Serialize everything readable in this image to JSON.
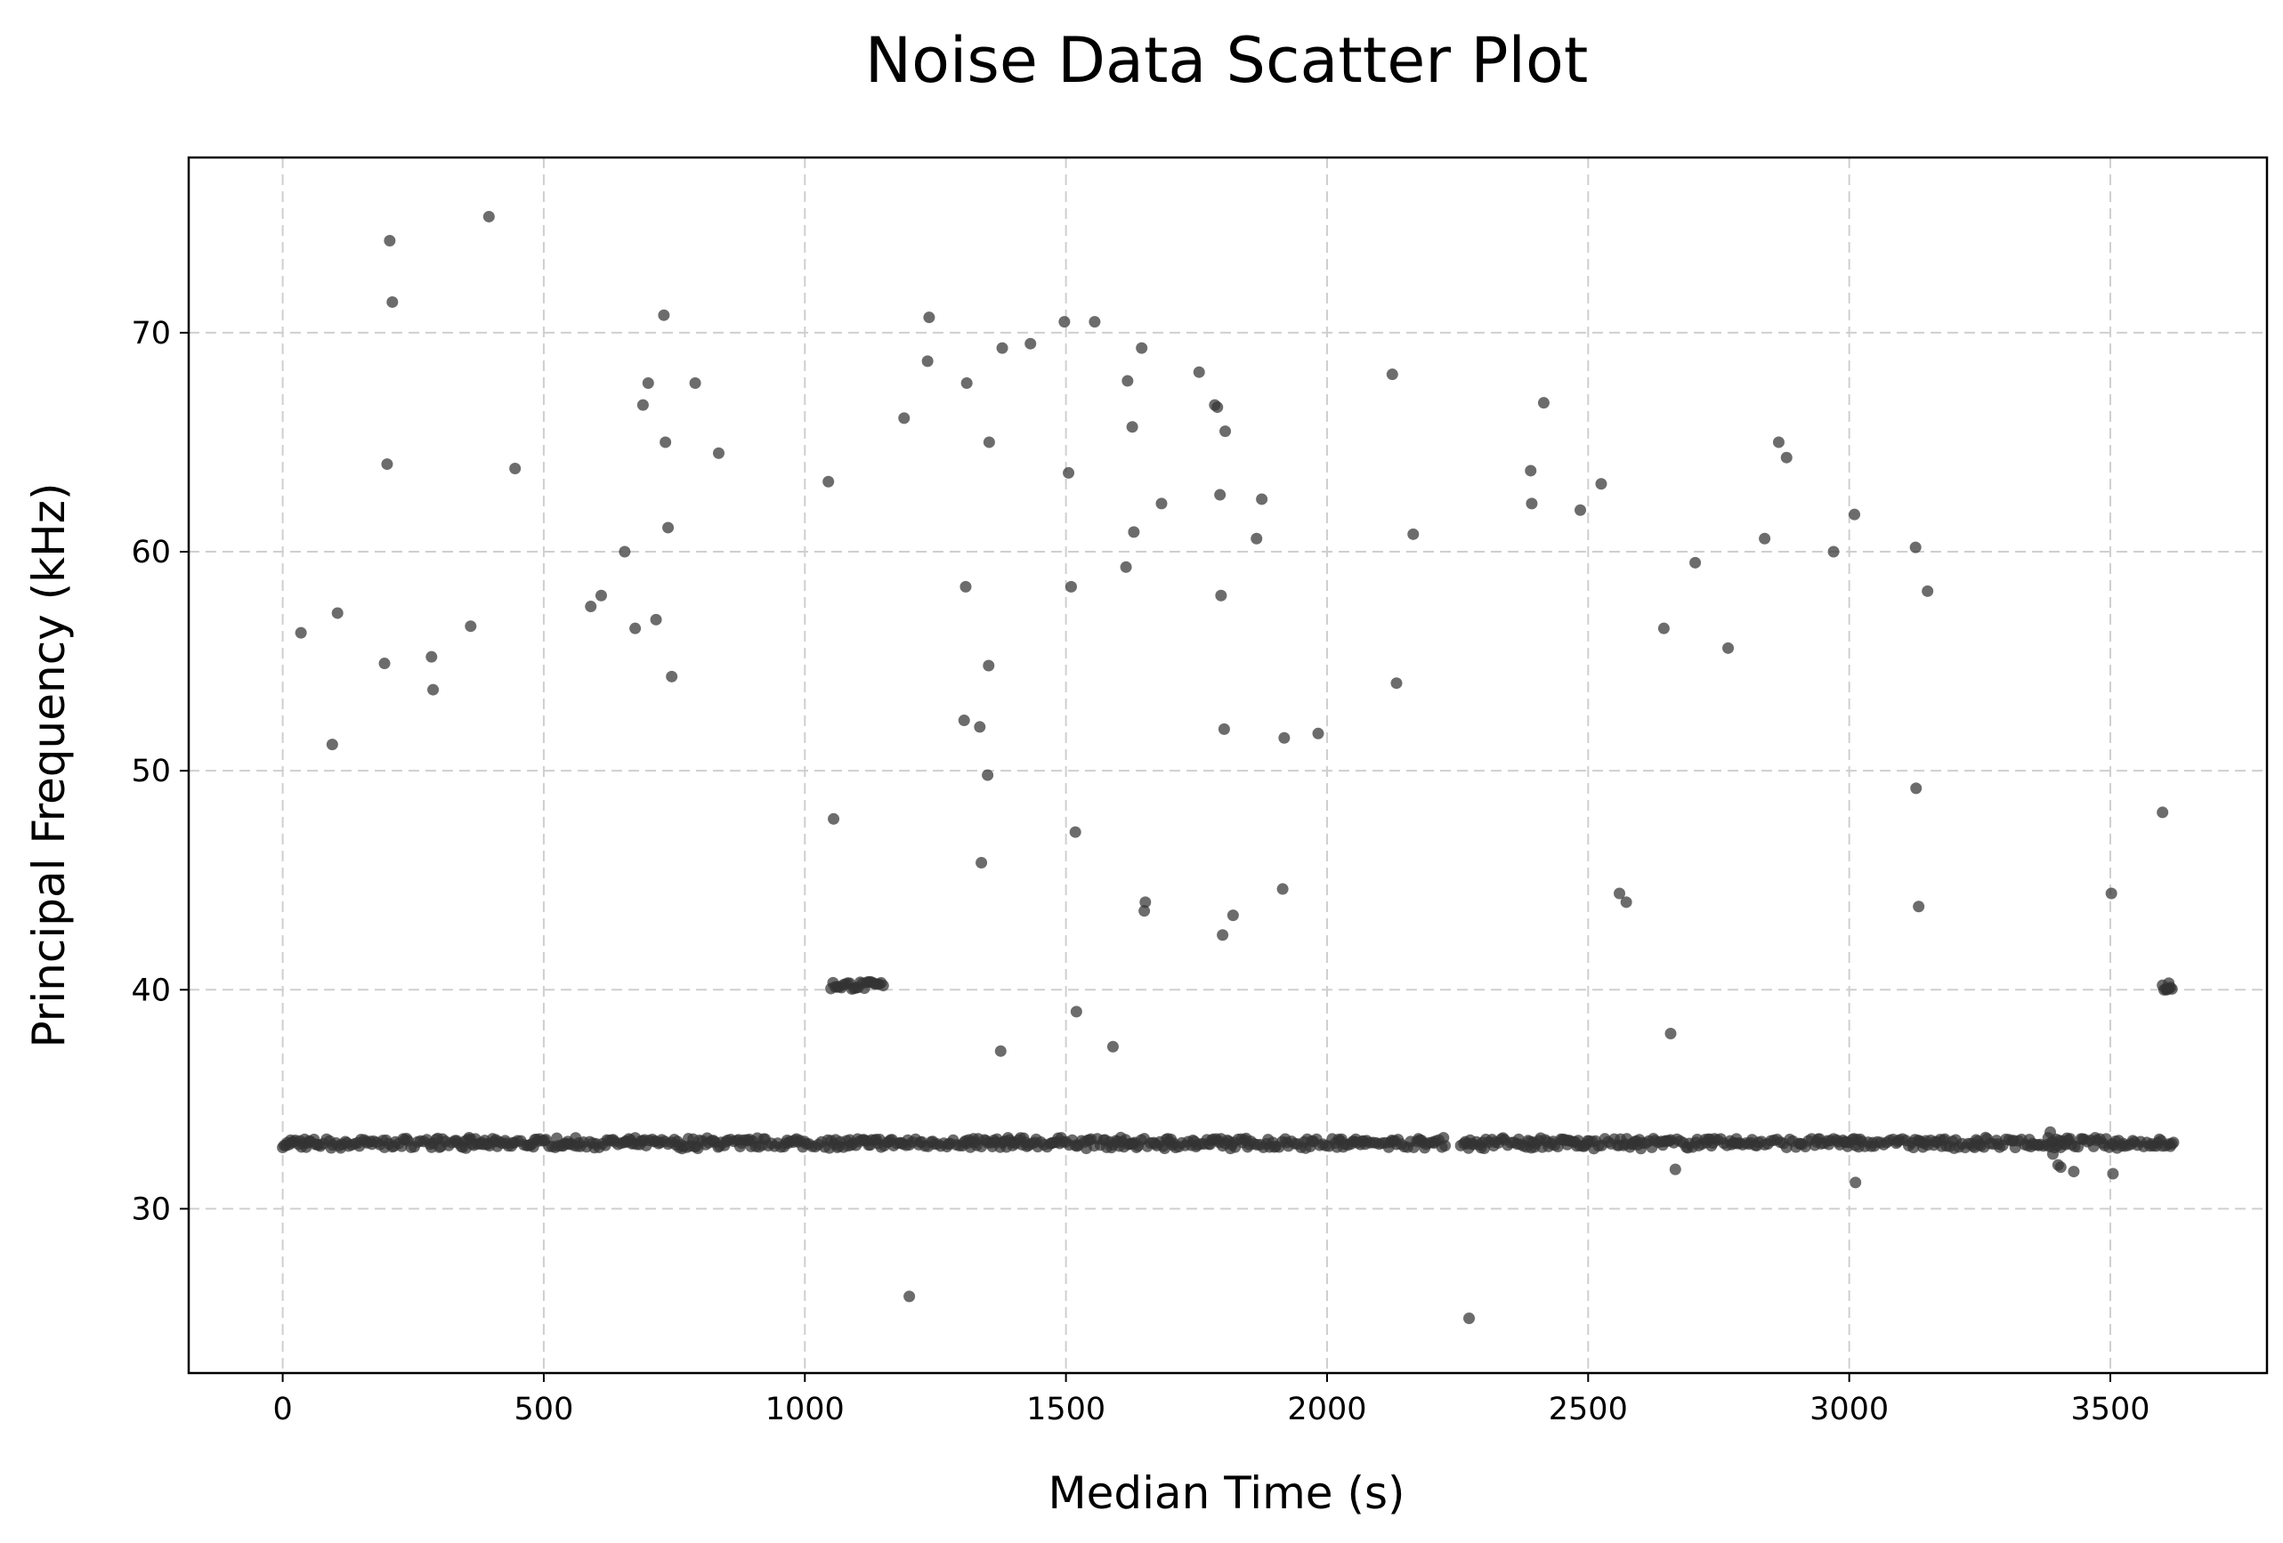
{
  "chart_data": {
    "type": "scatter",
    "title": "Noise Data Scatter Plot",
    "xlabel": "Median Time (s)",
    "ylabel": "Principal Frequency (kHz)",
    "xlim": [
      -180,
      3800
    ],
    "ylim": [
      22.5,
      78
    ],
    "xticks": [
      0,
      500,
      1000,
      1500,
      2000,
      2500,
      3000,
      3500
    ],
    "yticks": [
      30,
      40,
      50,
      60,
      70
    ],
    "grid": true,
    "legend": "none",
    "marker_color": "#333333",
    "baseline_band": {
      "description_values": "dense continuous band of points",
      "x_range": [
        0,
        3620
      ],
      "y_center": 33.0,
      "y_spread": 0.25
    },
    "cluster_1040": {
      "x_range": [
        1050,
        1150
      ],
      "y_center": 40.2
    },
    "cluster_3610": {
      "x_range": [
        3600,
        3620
      ],
      "y_center": 40.1
    },
    "points": [
      [
        35,
        56.3
      ],
      [
        95,
        51.2
      ],
      [
        105,
        57.2
      ],
      [
        195,
        54.9
      ],
      [
        200,
        64.0
      ],
      [
        205,
        74.2
      ],
      [
        210,
        71.4
      ],
      [
        285,
        55.2
      ],
      [
        288,
        53.7
      ],
      [
        360,
        56.6
      ],
      [
        395,
        75.3
      ],
      [
        445,
        63.8
      ],
      [
        590,
        57.5
      ],
      [
        610,
        58.0
      ],
      [
        655,
        60.0
      ],
      [
        675,
        56.5
      ],
      [
        690,
        66.7
      ],
      [
        700,
        67.7
      ],
      [
        715,
        56.9
      ],
      [
        730,
        70.8
      ],
      [
        733,
        65.0
      ],
      [
        738,
        61.1
      ],
      [
        745,
        54.3
      ],
      [
        790,
        67.7
      ],
      [
        835,
        64.5
      ],
      [
        1045,
        63.2
      ],
      [
        1055,
        47.8
      ],
      [
        1190,
        66.1
      ],
      [
        1200,
        26.0
      ],
      [
        1235,
        68.7
      ],
      [
        1238,
        70.7
      ],
      [
        1305,
        52.3
      ],
      [
        1308,
        58.4
      ],
      [
        1310,
        67.7
      ],
      [
        1335,
        52.0
      ],
      [
        1338,
        45.8
      ],
      [
        1350,
        49.8
      ],
      [
        1352,
        54.8
      ],
      [
        1353,
        65.0
      ],
      [
        1375,
        37.2
      ],
      [
        1378,
        69.3
      ],
      [
        1432,
        69.5
      ],
      [
        1497,
        70.5
      ],
      [
        1505,
        63.6
      ],
      [
        1510,
        58.4
      ],
      [
        1518,
        47.2
      ],
      [
        1520,
        39.0
      ],
      [
        1555,
        70.5
      ],
      [
        1590,
        37.4
      ],
      [
        1615,
        59.3
      ],
      [
        1618,
        67.8
      ],
      [
        1627,
        65.7
      ],
      [
        1630,
        60.9
      ],
      [
        1645,
        69.3
      ],
      [
        1650,
        43.6
      ],
      [
        1652,
        44.0
      ],
      [
        1683,
        62.2
      ],
      [
        1755,
        68.2
      ],
      [
        1785,
        66.7
      ],
      [
        1790,
        66.6
      ],
      [
        1795,
        62.6
      ],
      [
        1797,
        58.0
      ],
      [
        1800,
        42.5
      ],
      [
        1803,
        51.9
      ],
      [
        1805,
        65.5
      ],
      [
        1820,
        43.4
      ],
      [
        1865,
        60.6
      ],
      [
        1875,
        62.4
      ],
      [
        1915,
        44.6
      ],
      [
        1918,
        51.5
      ],
      [
        1983,
        51.7
      ],
      [
        2125,
        68.1
      ],
      [
        2133,
        54.0
      ],
      [
        2165,
        60.8
      ],
      [
        2272,
        25.0
      ],
      [
        2390,
        63.7
      ],
      [
        2392,
        62.2
      ],
      [
        2415,
        66.8
      ],
      [
        2485,
        61.9
      ],
      [
        2525,
        63.1
      ],
      [
        2560,
        44.4
      ],
      [
        2573,
        44.0
      ],
      [
        2645,
        56.5
      ],
      [
        2658,
        38.0
      ],
      [
        2667,
        31.8
      ],
      [
        2705,
        59.5
      ],
      [
        2768,
        55.6
      ],
      [
        2838,
        60.6
      ],
      [
        2865,
        65.0
      ],
      [
        2880,
        64.3
      ],
      [
        2970,
        60.0
      ],
      [
        3010,
        61.7
      ],
      [
        3012,
        31.2
      ],
      [
        3127,
        60.2
      ],
      [
        3128,
        49.2
      ],
      [
        3133,
        43.8
      ],
      [
        3150,
        58.2
      ],
      [
        3385,
        33.5
      ],
      [
        3390,
        32.5
      ],
      [
        3400,
        32.0
      ],
      [
        3405,
        31.9
      ],
      [
        3430,
        31.7
      ],
      [
        3502,
        44.4
      ],
      [
        3505,
        31.6
      ],
      [
        3600,
        48.1
      ],
      [
        3608,
        40.0
      ],
      [
        3612,
        40.3
      ]
    ]
  }
}
